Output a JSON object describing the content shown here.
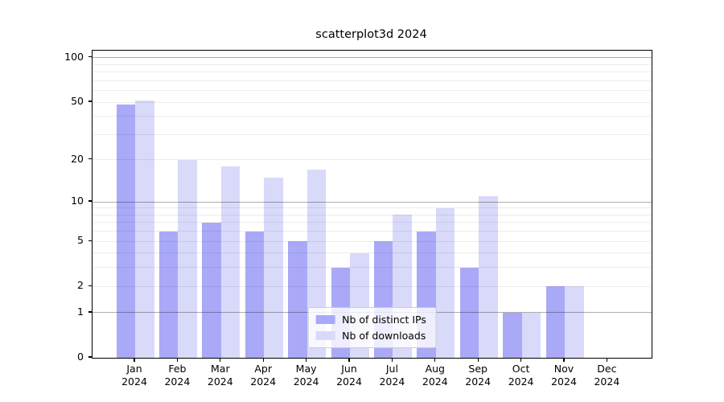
{
  "chart_data": {
    "type": "bar",
    "title": "scatterplot3d 2024",
    "categories": [
      "Jan",
      "Feb",
      "Mar",
      "Apr",
      "May",
      "Jun",
      "Jul",
      "Aug",
      "Sep",
      "Oct",
      "Nov",
      "Dec"
    ],
    "category_year": "2024",
    "series": [
      {
        "name": "Nb of distinct IPs",
        "color": "#a9a9f8",
        "values": [
          48,
          6,
          7,
          6,
          5,
          3,
          5,
          6,
          3,
          1,
          2,
          0
        ]
      },
      {
        "name": "Nb of downloads",
        "color": "#d9d9fa",
        "values": [
          51,
          20,
          18,
          15,
          17,
          4,
          8,
          9,
          11,
          1,
          2,
          0
        ]
      }
    ],
    "yscale": "log1p",
    "ylim": [
      0,
      110
    ],
    "y_tick_labels": [
      "100",
      "50",
      "20",
      "10",
      "5",
      "2",
      "1",
      "0"
    ],
    "y_tick_values": [
      100,
      50,
      20,
      10,
      5,
      2,
      1,
      0
    ],
    "y_major_gridlines": [
      1,
      10,
      100
    ],
    "y_minor_gridlines": [
      2,
      3,
      4,
      5,
      6,
      7,
      8,
      9,
      20,
      30,
      40,
      50,
      60,
      70,
      80,
      90
    ],
    "grid": true,
    "legend_position": "lower center inside"
  }
}
